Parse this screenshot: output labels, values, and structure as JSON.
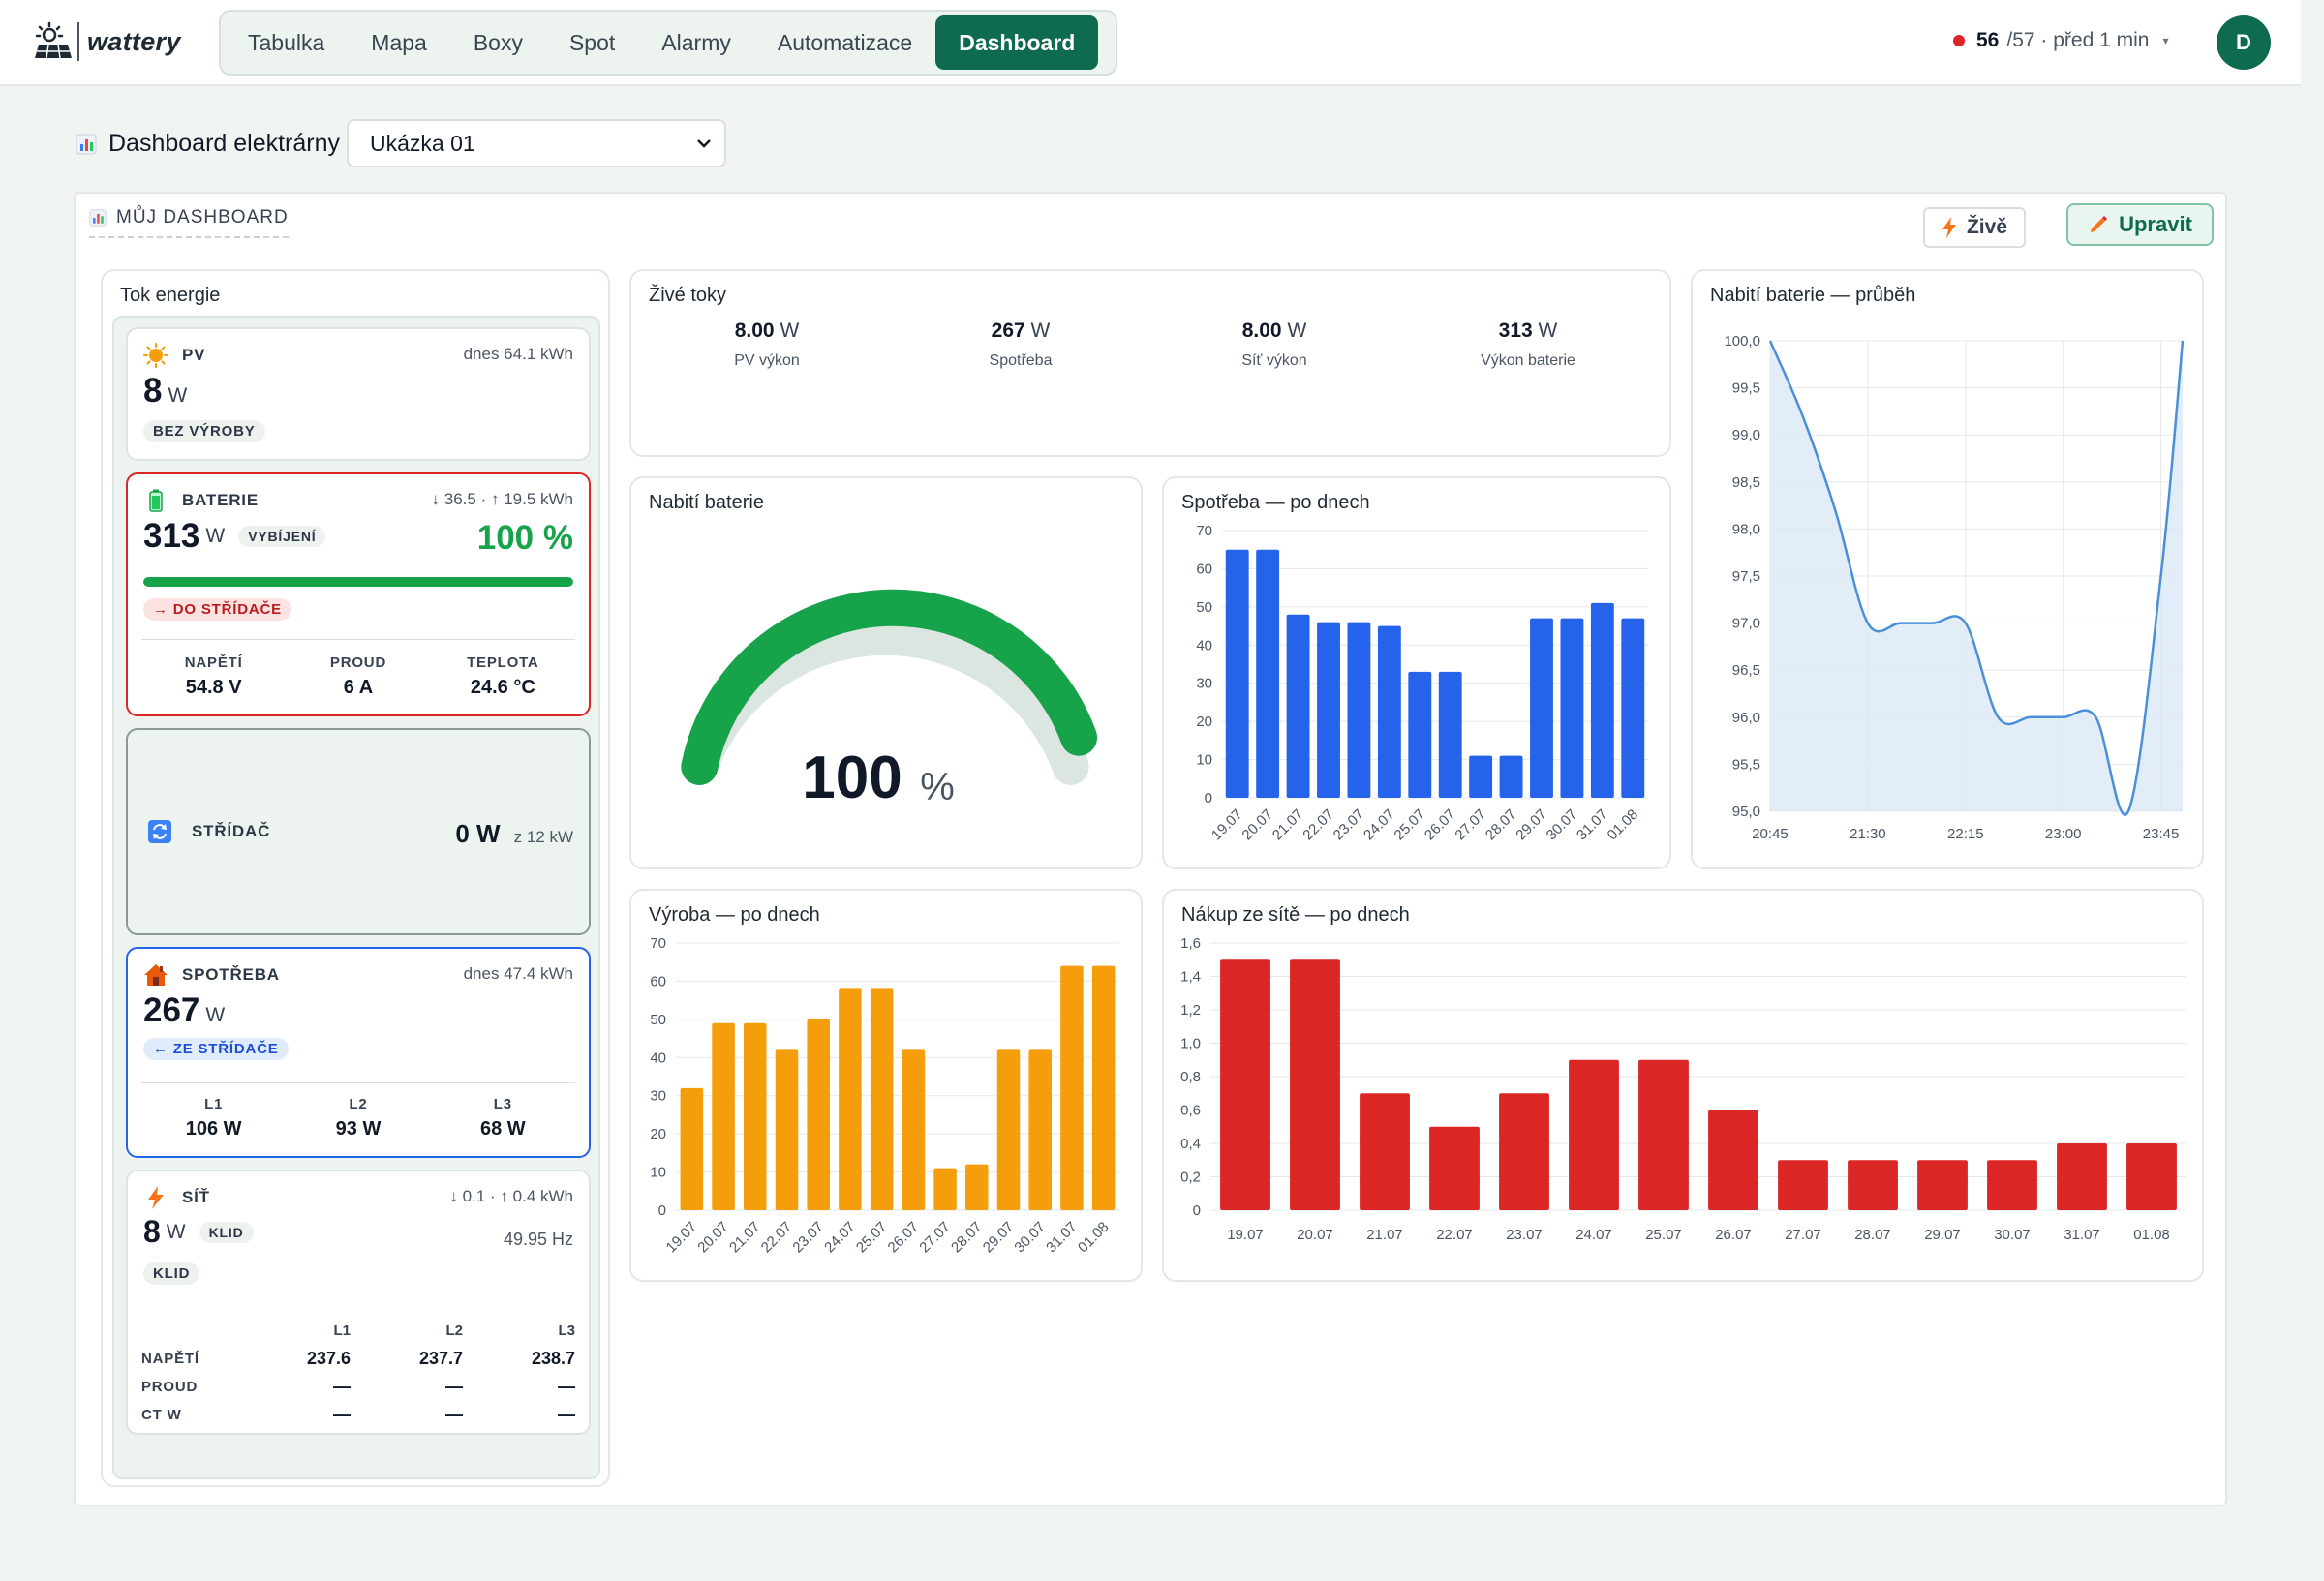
{
  "header": {
    "logo_text": "wattery",
    "nav": [
      "Tabulka",
      "Mapa",
      "Boxy",
      "Spot",
      "Alarmy",
      "Automatizace",
      "Dashboard"
    ],
    "active_nav": "Dashboard",
    "status_count": "56",
    "status_rest": "/57 · před 1 min",
    "avatar": "D"
  },
  "page": {
    "title": "Dashboard elektrárny",
    "plant_select": "Ukázka 01"
  },
  "board": {
    "title": "MŮJ DASHBOARD",
    "live_button": "Živě",
    "edit_button": "Upravit"
  },
  "flow": {
    "title": "Tok energie",
    "pv": {
      "label": "PV",
      "today": "dnes 64.1 kWh",
      "value": "8",
      "unit": "W",
      "state": "BEZ VÝROBY"
    },
    "battery": {
      "label": "BATERIE",
      "energy": "↓ 36.5 · ↑ 19.5 kWh",
      "value": "313",
      "unit": "W",
      "state": "VYBÍJENÍ",
      "soc": "100 %",
      "soc_fraction": 1.0,
      "direction": "→ DO STŘÍDAČE",
      "stats": [
        {
          "label": "NAPĚTÍ",
          "value": "54.8 V"
        },
        {
          "label": "PROUD",
          "value": "6 A"
        },
        {
          "label": "TEPLOTA",
          "value": "24.6 °C"
        }
      ]
    },
    "inverter": {
      "label": "STŘÍDAČ",
      "value": "0 W",
      "capacity": "z 12 kW"
    },
    "consumption": {
      "label": "SPOTŘEBA",
      "today": "dnes 47.4 kWh",
      "value": "267",
      "unit": "W",
      "direction": "← ZE STŘÍDAČE",
      "phases": [
        {
          "label": "L1",
          "value": "106 W"
        },
        {
          "label": "L2",
          "value": "93 W"
        },
        {
          "label": "L3",
          "value": "68 W"
        }
      ]
    },
    "grid": {
      "label": "SÍŤ",
      "energy": "↓ 0.1 · ↑ 0.4 kWh",
      "value": "8",
      "unit": "W",
      "state": "KLID",
      "state2": "KLID",
      "freq": "49.95 Hz",
      "phase_headers": [
        "L1",
        "L2",
        "L3"
      ],
      "rows": [
        {
          "label": "NAPĚTÍ",
          "values": [
            "237.6",
            "237.7",
            "238.7"
          ]
        },
        {
          "label": "PROUD",
          "values": [
            "—",
            "—",
            "—"
          ]
        },
        {
          "label": "CT W",
          "values": [
            "—",
            "—",
            "—"
          ]
        }
      ]
    }
  },
  "live_flows": {
    "title": "Živé toky",
    "items": [
      {
        "value": "8.00",
        "unit": "W",
        "label": "PV výkon"
      },
      {
        "value": "267",
        "unit": "W",
        "label": "Spotřeba"
      },
      {
        "value": "8.00",
        "unit": "W",
        "label": "Síť výkon"
      },
      {
        "value": "313",
        "unit": "W",
        "label": "Výkon baterie"
      }
    ]
  },
  "gauge": {
    "title": "Nabití baterie",
    "value": 100,
    "value_text": "100",
    "unit": "%",
    "color": "#16a34a"
  },
  "colors": {
    "brand": "#0f6b4f",
    "consumption": "#2563eb",
    "production": "#f59e0b",
    "grid_purchase": "#dc2626",
    "battery_line": "#4a90d9"
  },
  "chart_data": [
    {
      "id": "consumption",
      "title": "Spotřeba — po dnech",
      "type": "bar",
      "categories": [
        "19.07",
        "20.07",
        "21.07",
        "22.07",
        "23.07",
        "24.07",
        "25.07",
        "26.07",
        "27.07",
        "28.07",
        "29.07",
        "30.07",
        "31.07",
        "01.08"
      ],
      "values": [
        65,
        65,
        48,
        46,
        46,
        45,
        33,
        33,
        11,
        11,
        47,
        47,
        51,
        47
      ],
      "ylim": [
        0,
        70
      ],
      "yticks": [
        "0",
        "10",
        "20",
        "30",
        "40",
        "50",
        "60",
        "70"
      ],
      "grid": true
    },
    {
      "id": "soc",
      "title": "Nabití baterie — průběh",
      "type": "area",
      "x_ticks": [
        "20:45",
        "21:30",
        "22:15",
        "23:00",
        "23:45"
      ],
      "x": [
        "20:45",
        "21:00",
        "21:15",
        "21:30",
        "21:45",
        "22:00",
        "22:15",
        "22:30",
        "22:45",
        "23:00",
        "23:15",
        "23:30",
        "23:45",
        "23:55"
      ],
      "values": [
        100.0,
        99.2,
        98.2,
        97.0,
        97.0,
        97.0,
        97.0,
        96.0,
        96.0,
        96.0,
        96.0,
        95.0,
        97.5,
        100.0
      ],
      "ylim": [
        95.0,
        100.0
      ],
      "yticks": [
        "95,0",
        "95,5",
        "96,0",
        "96,5",
        "97,0",
        "97,5",
        "98,0",
        "98,5",
        "99,0",
        "99,5",
        "100,0"
      ],
      "grid": true
    },
    {
      "id": "production",
      "title": "Výroba — po dnech",
      "type": "bar",
      "categories": [
        "19.07",
        "20.07",
        "21.07",
        "22.07",
        "23.07",
        "24.07",
        "25.07",
        "26.07",
        "27.07",
        "28.07",
        "29.07",
        "30.07",
        "31.07",
        "01.08"
      ],
      "values": [
        32,
        49,
        49,
        42,
        50,
        58,
        58,
        42,
        11,
        12,
        42,
        42,
        64,
        64
      ],
      "ylim": [
        0,
        70
      ],
      "yticks": [
        "0",
        "10",
        "20",
        "30",
        "40",
        "50",
        "60",
        "70"
      ],
      "grid": true
    },
    {
      "id": "grid_purchase",
      "title": "Nákup ze sítě — po dnech",
      "type": "bar",
      "categories": [
        "19.07",
        "20.07",
        "21.07",
        "22.07",
        "23.07",
        "24.07",
        "25.07",
        "26.07",
        "27.07",
        "28.07",
        "29.07",
        "30.07",
        "31.07",
        "01.08"
      ],
      "values": [
        1.5,
        1.5,
        0.7,
        0.5,
        0.7,
        0.9,
        0.9,
        0.6,
        0.3,
        0.3,
        0.3,
        0.3,
        0.4,
        0.4
      ],
      "ylim": [
        0,
        1.6
      ],
      "yticks": [
        "0",
        "0,2",
        "0,4",
        "0,6",
        "0,8",
        "1,0",
        "1,2",
        "1,4",
        "1,6"
      ],
      "grid": true
    }
  ]
}
